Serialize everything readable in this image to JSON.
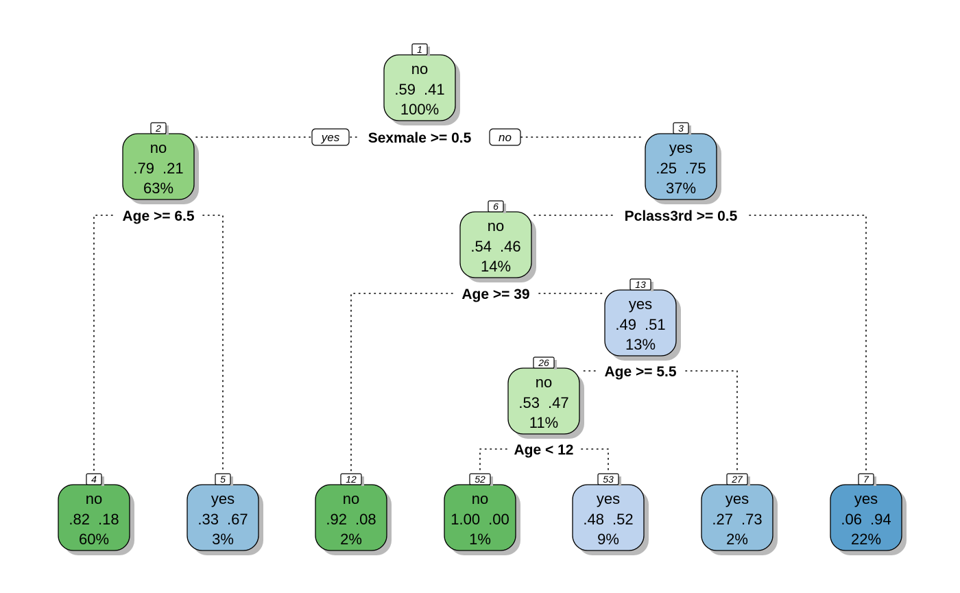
{
  "colors": {
    "no_light": "#c1e8b4",
    "no_mid": "#8fd07e",
    "no_dark": "#63b962",
    "yes_lightest": "#bed3ee",
    "yes_light": "#91bfdd",
    "yes_dark": "#5a9fcd"
  },
  "edge_labels": {
    "yes": "yes",
    "no": "no"
  },
  "nodes": [
    {
      "id": "1",
      "class": "no",
      "probs": [
        ".59",
        ".41"
      ],
      "pct": "100%",
      "color_key": "no_light"
    },
    {
      "id": "2",
      "class": "no",
      "probs": [
        ".79",
        ".21"
      ],
      "pct": "63%",
      "color_key": "no_mid"
    },
    {
      "id": "3",
      "class": "yes",
      "probs": [
        ".25",
        ".75"
      ],
      "pct": "37%",
      "color_key": "yes_light"
    },
    {
      "id": "6",
      "class": "no",
      "probs": [
        ".54",
        ".46"
      ],
      "pct": "14%",
      "color_key": "no_light"
    },
    {
      "id": "13",
      "class": "yes",
      "probs": [
        ".49",
        ".51"
      ],
      "pct": "13%",
      "color_key": "yes_lightest"
    },
    {
      "id": "26",
      "class": "no",
      "probs": [
        ".53",
        ".47"
      ],
      "pct": "11%",
      "color_key": "no_light"
    },
    {
      "id": "4",
      "class": "no",
      "probs": [
        ".82",
        ".18"
      ],
      "pct": "60%",
      "color_key": "no_dark"
    },
    {
      "id": "5",
      "class": "yes",
      "probs": [
        ".33",
        ".67"
      ],
      "pct": "3%",
      "color_key": "yes_light"
    },
    {
      "id": "12",
      "class": "no",
      "probs": [
        ".92",
        ".08"
      ],
      "pct": "2%",
      "color_key": "no_dark"
    },
    {
      "id": "52",
      "class": "no",
      "probs": [
        "1.00",
        ".00"
      ],
      "pct": "1%",
      "color_key": "no_dark"
    },
    {
      "id": "53",
      "class": "yes",
      "probs": [
        ".48",
        ".52"
      ],
      "pct": "9%",
      "color_key": "yes_lightest"
    },
    {
      "id": "27",
      "class": "yes",
      "probs": [
        ".27",
        ".73"
      ],
      "pct": "2%",
      "color_key": "yes_light"
    },
    {
      "id": "7",
      "class": "yes",
      "probs": [
        ".06",
        ".94"
      ],
      "pct": "22%",
      "color_key": "yes_dark"
    }
  ],
  "splits": [
    {
      "node": "1",
      "label": "Sexmale >= 0.5"
    },
    {
      "node": "2",
      "label": "Age >= 6.5"
    },
    {
      "node": "3",
      "label": "Pclass3rd >= 0.5"
    },
    {
      "node": "6",
      "label": "Age >= 39"
    },
    {
      "node": "13",
      "label": "Age >= 5.5"
    },
    {
      "node": "26",
      "label": "Age < 12"
    }
  ]
}
